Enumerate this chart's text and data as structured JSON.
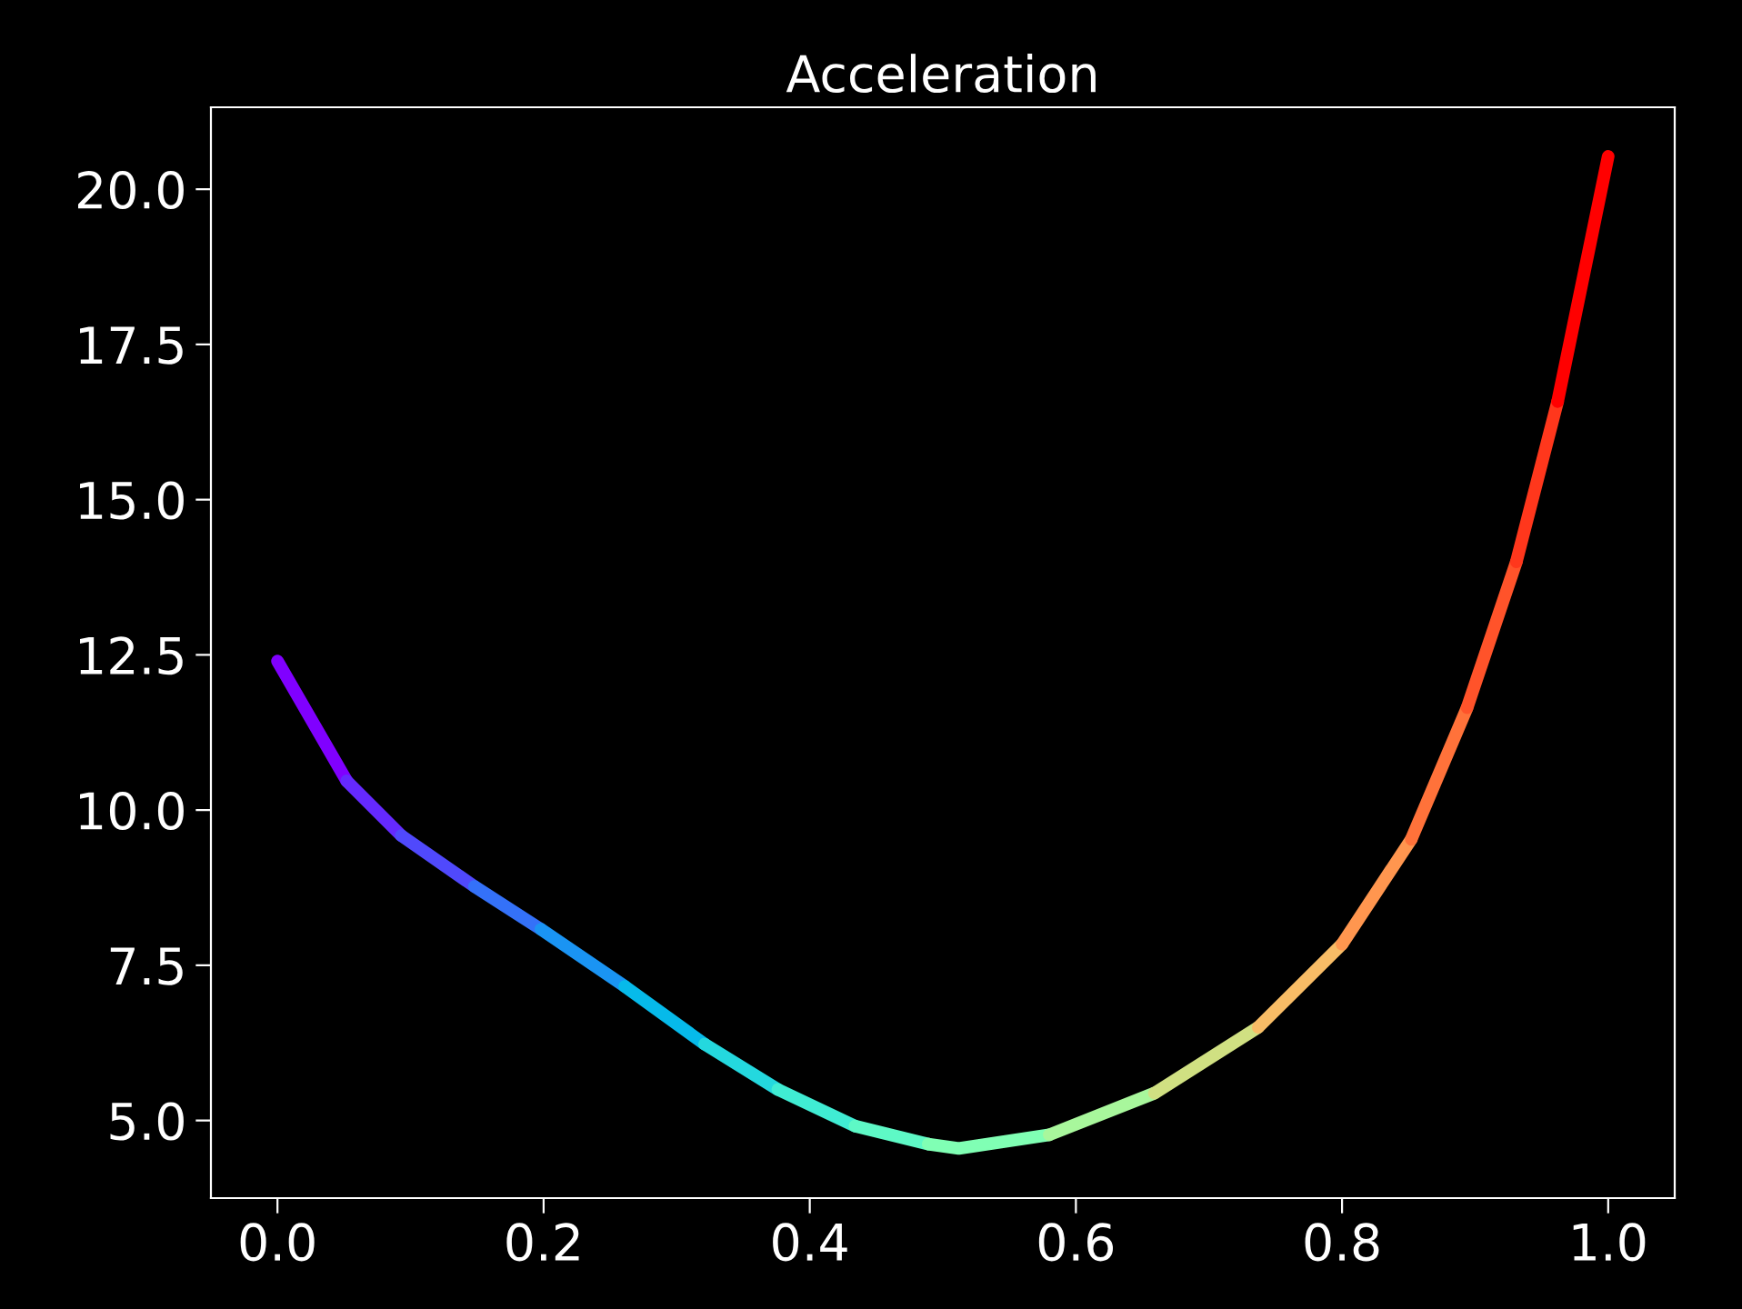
{
  "chart_data": {
    "type": "line",
    "title": "Acceleration",
    "series": [
      {
        "x": [
          0,
          0.052
        ],
        "values": [
          12.4,
          10.47
        ],
        "color": "#8000ff"
      },
      {
        "x": [
          0.052,
          0.093
        ],
        "values": [
          10.47,
          9.59
        ],
        "color": "#6529fe"
      },
      {
        "x": [
          0.093,
          0.148
        ],
        "values": [
          9.59,
          8.77
        ],
        "color": "#5049fc"
      },
      {
        "x": [
          0.148,
          0.198
        ],
        "values": [
          8.77,
          8.08
        ],
        "color": "#3471f8"
      },
      {
        "x": [
          0.198,
          0.261
        ],
        "values": [
          8.08,
          7.16
        ],
        "color": "#1a94f3"
      },
      {
        "x": [
          0.261,
          0.321
        ],
        "values": [
          7.16,
          6.23
        ],
        "color": "#06baea"
      },
      {
        "x": [
          0.321,
          0.376
        ],
        "values": [
          6.23,
          5.5
        ],
        "color": "#24d8de"
      },
      {
        "x": [
          0.376,
          0.434
        ],
        "values": [
          5.5,
          4.91
        ],
        "color": "#40ecd3"
      },
      {
        "x": [
          0.434,
          0.489
        ],
        "values": [
          4.91,
          4.62
        ],
        "color": "#5ef9c6"
      },
      {
        "x": [
          0.489,
          0.512,
          0.58
        ],
        "values": [
          4.62,
          4.55,
          4.77
        ],
        "color": "#80ffb4"
      },
      {
        "x": [
          0.58,
          0.659
        ],
        "values": [
          4.77,
          5.44
        ],
        "color": "#a8f79c"
      },
      {
        "x": [
          0.659,
          0.737
        ],
        "values": [
          5.44,
          6.5
        ],
        "color": "#d0e082"
      },
      {
        "x": [
          0.737,
          0.8
        ],
        "values": [
          6.5,
          7.84
        ],
        "color": "#f8bc66"
      },
      {
        "x": [
          0.8,
          0.852
        ],
        "values": [
          7.84,
          9.53
        ],
        "color": "#ff964f"
      },
      {
        "x": [
          0.852,
          0.894
        ],
        "values": [
          9.53,
          11.65
        ],
        "color": "#ff723a"
      },
      {
        "x": [
          0.894,
          0.931
        ],
        "values": [
          11.65,
          14.0
        ],
        "color": "#ff532a"
      },
      {
        "x": [
          0.931,
          0.962
        ],
        "values": [
          14.0,
          16.58
        ],
        "color": "#ff371c"
      },
      {
        "x": [
          0.962,
          1.0
        ],
        "values": [
          16.58,
          20.53
        ],
        "color": "#ff0000"
      }
    ],
    "xlim": [
      -0.05,
      1.05
    ],
    "ylim": [
      3.75,
      21.32
    ],
    "xticks": [
      {
        "value": 0,
        "label": "0.0"
      },
      {
        "value": 0.2,
        "label": "0.2"
      },
      {
        "value": 0.4,
        "label": "0.4"
      },
      {
        "value": 0.6,
        "label": "0.6"
      },
      {
        "value": 0.8,
        "label": "0.8"
      },
      {
        "value": 1.0,
        "label": "1.0"
      }
    ],
    "yticks": [
      {
        "value": 5,
        "label": "5.0"
      },
      {
        "value": 7.5,
        "label": "7.5"
      },
      {
        "value": 10,
        "label": "10.0"
      },
      {
        "value": 12.5,
        "label": "12.5"
      },
      {
        "value": 15,
        "label": "15.0"
      },
      {
        "value": 17.5,
        "label": "17.5"
      },
      {
        "value": 20,
        "label": "20.0"
      }
    ],
    "grid": false,
    "marker": "none",
    "line_style": "solid"
  }
}
